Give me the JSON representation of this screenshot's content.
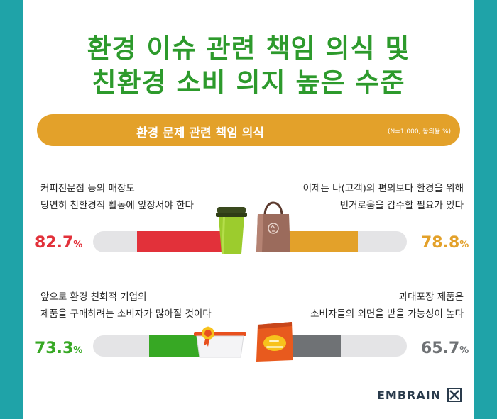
{
  "title_line1": "환경 이슈 관련 책임 의식 및",
  "title_line2": "친환경 소비 의지 높은 수준",
  "banner": {
    "title": "환경 문제 관련 책임 의식",
    "note": "(N=1,000, 동의율 %)"
  },
  "colors": {
    "background": "#1fa3a8",
    "title_green": "#2d9a2c",
    "banner_orange": "#e3a12a",
    "track": "#e4e4e6"
  },
  "chart_data": {
    "type": "bar",
    "title": "환경 문제 관련 책임 의식",
    "unit": "%",
    "ylim": [
      0,
      100
    ],
    "items": [
      {
        "line1": "커피전문점 등의 매장도",
        "line2": "당연히 친환경적 활동에 앞장서야 한다",
        "value": 82.7,
        "value_label": "82.7",
        "color": "#e2313a",
        "icon": "coffee-cup-icon"
      },
      {
        "line1": "이제는 나(고객)의 편의보다 환경을 위해",
        "line2": "번거로움을 감수할 필요가 있다",
        "value": 78.8,
        "value_label": "78.8",
        "color": "#e3a12a",
        "icon": "eco-bag-icon"
      },
      {
        "line1": "앞으로 환경 친화적 기업의",
        "line2": "제품을 구매하려는 소비자가 많아질 것이다",
        "value": 73.3,
        "value_label": "73.3",
        "color": "#37a824",
        "icon": "certified-container-icon"
      },
      {
        "line1": "과대포장 제품은",
        "line2": "소비자들의 외면을 받을 가능성이 높다",
        "value": 65.7,
        "value_label": "65.7",
        "color": "#6f7275",
        "icon": "packaged-snack-icon"
      }
    ],
    "percent_symbol": "%"
  },
  "brand": "EMBRAIN"
}
